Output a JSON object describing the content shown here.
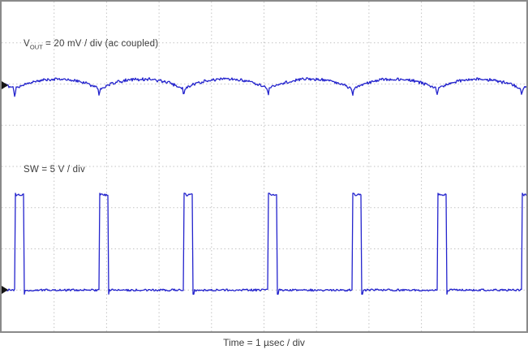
{
  "scope": {
    "frame_color": "#8a8a8a",
    "grid_color": "#c3c3c3",
    "trace_color": "#2323cd",
    "marker_color": "#151515",
    "background": "#ffffff"
  },
  "labels": {
    "vout_prefix": "V",
    "vout_sub": "OUT",
    "vout_rest": " = 20 mV / div (ac coupled)",
    "sw": "SW = 5 V / div",
    "timebase": "Time = 1 µsec / div"
  },
  "chart_data": {
    "type": "line",
    "title": "",
    "xlabel": "Time = 1 µsec / div",
    "ylabel": "",
    "grid": true,
    "x_divisions": 10,
    "y_divisions": 8,
    "x_range_us": [
      0,
      10
    ],
    "time_per_div_us": 1,
    "series": [
      {
        "name": "VOUT",
        "label": "VOUT = 20 mV / div (ac coupled)",
        "scale_per_div": "20 mV",
        "coupling": "ac coupled",
        "waveform": "output ripple: repeating scalloped humps with a sharp downward switching spike at each period boundary, noisy trace",
        "period_us": 1.61,
        "phase_offset_us": 0.25,
        "valley_div_from_top": 2.13,
        "ripple_amp_div": 0.25,
        "spike_depth_div": 0.16,
        "ripple_pp_mV_approx": 5,
        "noise_div": 0.03
      },
      {
        "name": "SW",
        "label": "SW = 5 V / div",
        "scale_per_div": "5 V",
        "waveform": "switch node: narrow positive rectangular pulses from a noisy 0 V baseline",
        "period_us": 1.61,
        "phase_offset_us": 0.25,
        "pulse_width_us": 0.17,
        "baseline_div_from_top": 7.0,
        "high_div_above_baseline": 2.31,
        "high_level_V_approx": 11.6,
        "duty_cycle_approx": 0.11,
        "noise_div": 0.025
      }
    ]
  }
}
